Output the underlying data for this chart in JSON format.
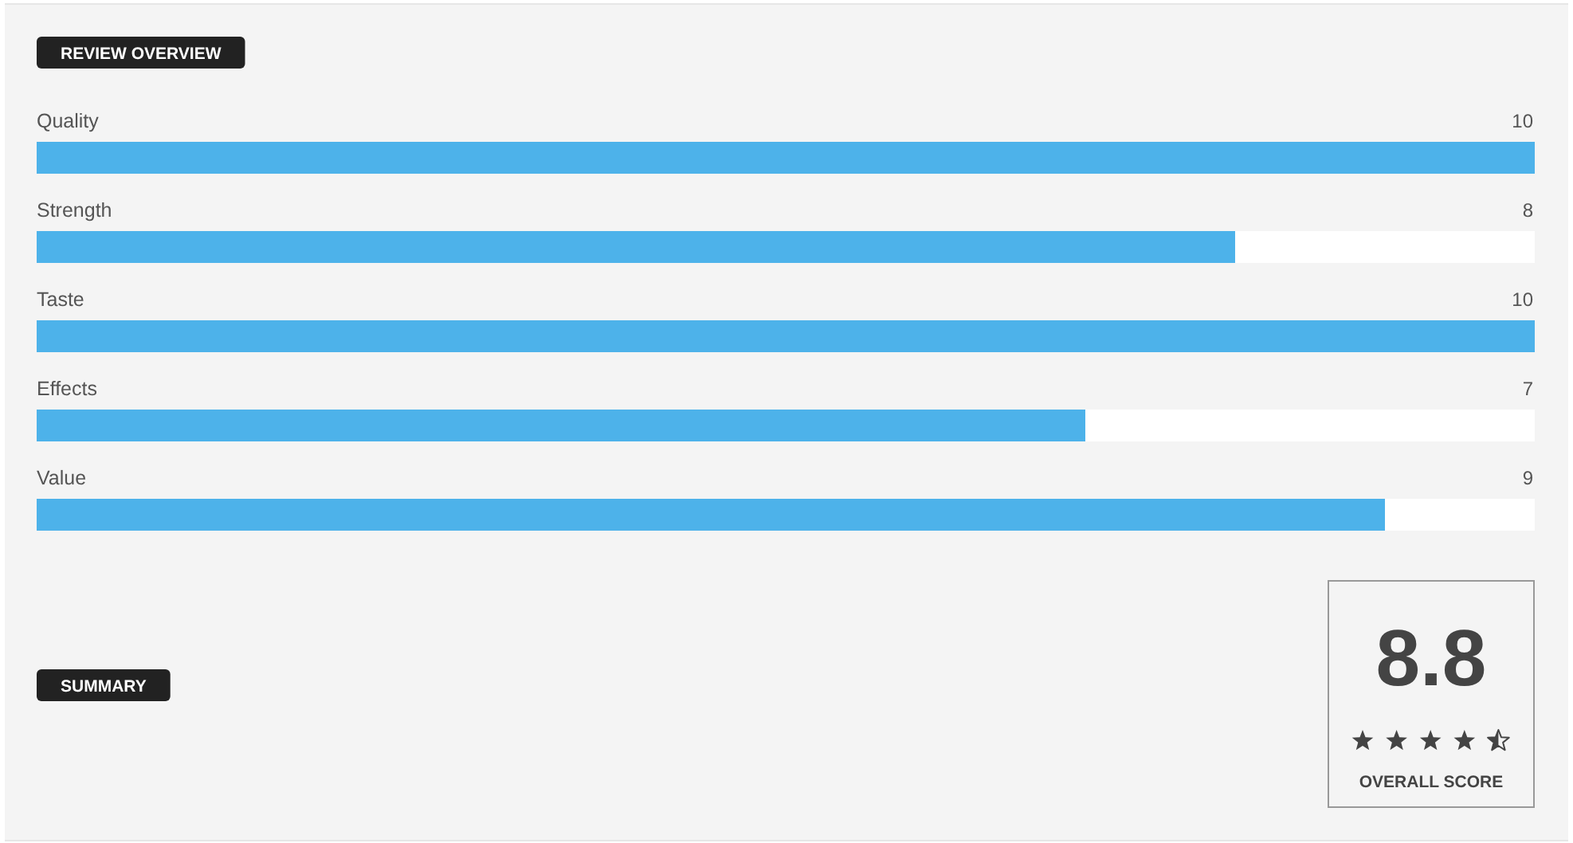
{
  "chart_data": {
    "type": "bar",
    "orientation": "horizontal",
    "title": "REVIEW OVERVIEW",
    "categories": [
      "Quality",
      "Strength",
      "Taste",
      "Effects",
      "Value"
    ],
    "values": [
      10,
      8,
      10,
      7,
      9
    ],
    "color": "#4db2ea",
    "xlim": [
      0,
      10
    ],
    "data_labels": true,
    "tick_labels": "y",
    "annotations": [
      "SUMMARY",
      "8.8",
      "OVERALL SCORE"
    ]
  }
}
